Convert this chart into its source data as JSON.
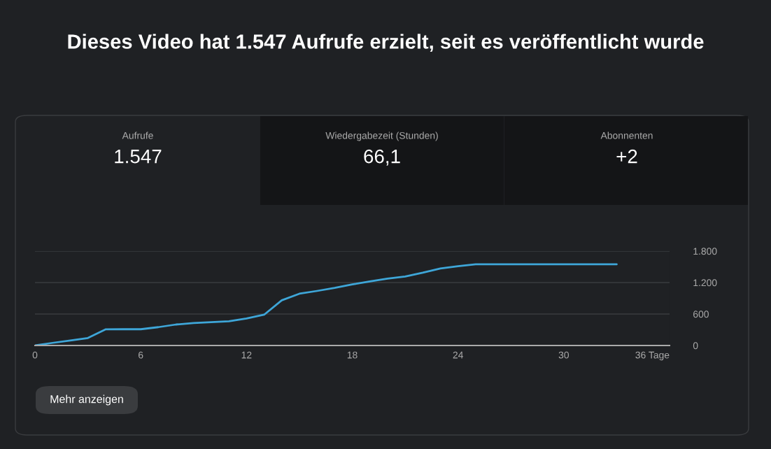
{
  "chart_data": {
    "type": "line",
    "title": "Dieses Video hat 1.547 Aufrufe erzielt, seit es veröffentlicht wurde",
    "x": [
      0,
      1,
      2,
      3,
      4,
      5,
      6,
      7,
      8,
      9,
      10,
      11,
      12,
      13,
      14,
      15,
      16,
      17,
      18,
      19,
      20,
      21,
      22,
      23,
      24,
      25,
      33
    ],
    "series": [
      {
        "color": "#3ea6d8",
        "values": [
          0,
          50,
          95,
          143,
          307,
          310,
          310,
          350,
          400,
          427,
          444,
          462,
          516,
          587,
          862,
          987,
          1040,
          1097,
          1164,
          1222,
          1276,
          1316,
          1387,
          1467,
          1511,
          1547,
          1547
        ]
      }
    ],
    "xlim": [
      0,
      36
    ],
    "xticks": [
      0,
      6,
      12,
      18,
      24,
      30,
      {
        "value": 36,
        "label": "36 Tage"
      }
    ],
    "ylim": [
      0,
      1800
    ],
    "yticks": [
      0,
      600,
      {
        "value": 1200,
        "label": "1.200"
      },
      {
        "value": 1800,
        "label": "1.800"
      }
    ],
    "grid": "y",
    "marker": "none",
    "line_style": "solid",
    "annotations": [
      "Aufrufe",
      "1.547",
      "Wiedergabezeit (Stunden)",
      "66,1",
      "Abonnenten",
      "+2",
      "Mehr anzeigen"
    ]
  }
}
